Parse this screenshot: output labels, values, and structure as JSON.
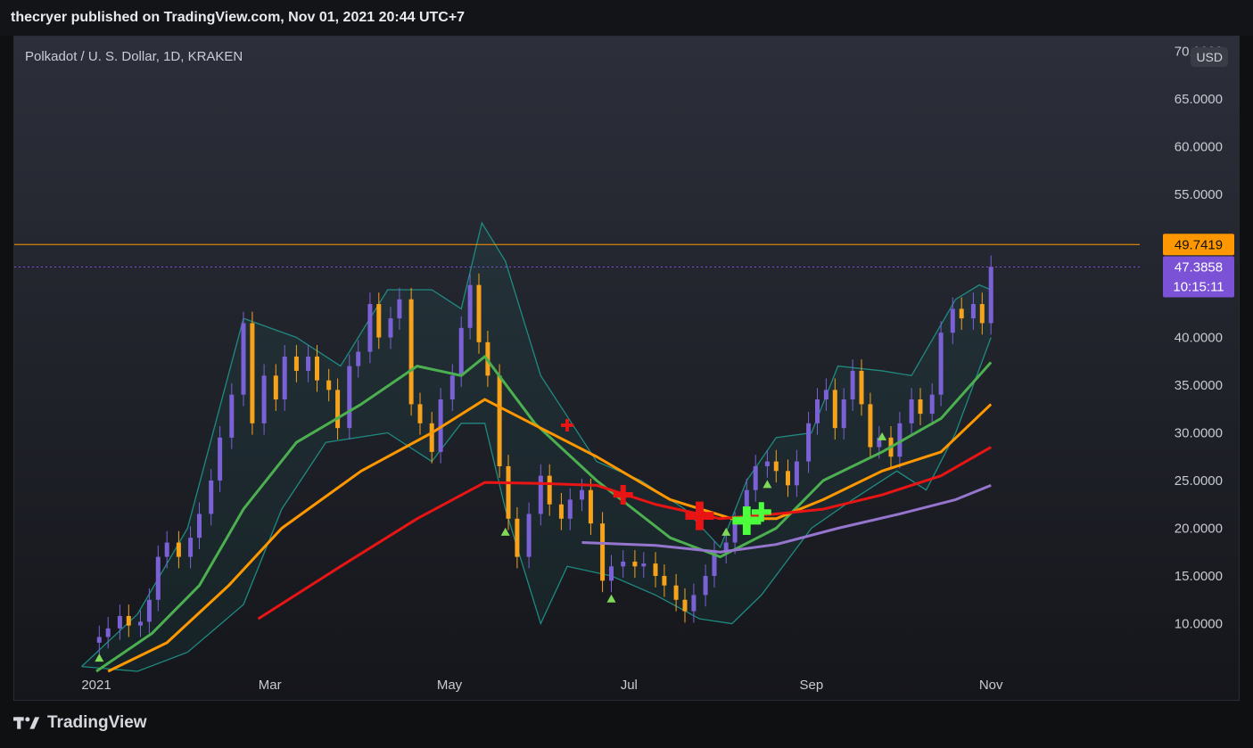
{
  "header": {
    "published": "thecryer published on TradingView.com, Nov 01, 2021 20:44 UTC+7"
  },
  "chart_header": {
    "symbol": "Polkadot / U. S. Dollar, 1D, KRAKEN",
    "currency": "USD"
  },
  "footer": {
    "brand": "TradingView"
  },
  "colors": {
    "up": "#7b61d6",
    "down": "#f7a21b",
    "sma_green": "#4caf50",
    "ema_orange": "#ff9800",
    "red": "#e91414",
    "purple": "#9575cd",
    "band": "#1f8a80"
  },
  "chart_data": {
    "type": "line",
    "title": "Polkadot / U. S. Dollar, 1D, KRAKEN",
    "xlabel": "",
    "ylabel": "",
    "ylim": [
      5,
      72
    ],
    "x_tick_labels": [
      "2021",
      "Mar",
      "May",
      "Jul",
      "Sep",
      "Nov"
    ],
    "y_tick_labels": [
      "70.0000",
      "65.0000",
      "60.0000",
      "55.0000",
      "40.0000",
      "35.0000",
      "30.0000",
      "25.0000",
      "20.0000",
      "15.0000",
      "10.0000"
    ],
    "price_labels": [
      {
        "value": 49.7419,
        "label": "49.7419",
        "color": "#ff9800"
      },
      {
        "value": 47.3858,
        "label": "47.3858",
        "sub": "10:15:11",
        "color": "#7b52d6"
      }
    ],
    "resistance": 49.74,
    "close_series": [
      [
        "Dec 27",
        8
      ],
      [
        "Jan 02",
        8.6
      ],
      [
        "Jan 05",
        9.5
      ],
      [
        "Jan 09",
        10.8
      ],
      [
        "Jan 12",
        9.8
      ],
      [
        "Jan 16",
        10.2
      ],
      [
        "Jan 19",
        12.5
      ],
      [
        "Jan 22",
        17.0
      ],
      [
        "Jan 25",
        18.5
      ],
      [
        "Jan 29",
        17.0
      ],
      [
        "Feb 02",
        19.0
      ],
      [
        "Feb 05",
        21.5
      ],
      [
        "Feb 09",
        25.0
      ],
      [
        "Feb 12",
        29.5
      ],
      [
        "Feb 16",
        34.0
      ],
      [
        "Feb 20",
        41.5
      ],
      [
        "Feb 23",
        31.0
      ],
      [
        "Feb 27",
        36.0
      ],
      [
        "Mar 03",
        33.5
      ],
      [
        "Mar 06",
        38.0
      ],
      [
        "Mar 10",
        36.5
      ],
      [
        "Mar 14",
        38.0
      ],
      [
        "Mar 17",
        35.5
      ],
      [
        "Mar 21",
        34.5
      ],
      [
        "Mar 24",
        30.5
      ],
      [
        "Mar 28",
        37.0
      ],
      [
        "Mar 31",
        38.5
      ],
      [
        "Apr 04",
        43.5
      ],
      [
        "Apr 07",
        40.0
      ],
      [
        "Apr 11",
        42.0
      ],
      [
        "Apr 14",
        44.0
      ],
      [
        "Apr 18",
        33.0
      ],
      [
        "Apr 21",
        31.0
      ],
      [
        "Apr 25",
        28.0
      ],
      [
        "Apr 28",
        33.5
      ],
      [
        "May 02",
        36.0
      ],
      [
        "May 05",
        41.0
      ],
      [
        "May 08",
        45.5
      ],
      [
        "May 11",
        39.5
      ],
      [
        "May 14",
        36.0
      ],
      [
        "May 18",
        26.5
      ],
      [
        "May 21",
        21.0
      ],
      [
        "May 24",
        17.0
      ],
      [
        "May 28",
        21.5
      ],
      [
        "Jun 01",
        25.5
      ],
      [
        "Jun 04",
        22.5
      ],
      [
        "Jun 08",
        21.0
      ],
      [
        "Jun 11",
        23.0
      ],
      [
        "Jun 15",
        24.0
      ],
      [
        "Jun 18",
        20.5
      ],
      [
        "Jun 22",
        14.5
      ],
      [
        "Jun 25",
        16.0
      ],
      [
        "Jun 29",
        16.5
      ],
      [
        "Jul 03",
        16.0
      ],
      [
        "Jul 06",
        16.3
      ],
      [
        "Jul 10",
        15.0
      ],
      [
        "Jul 13",
        14.0
      ],
      [
        "Jul 17",
        12.5
      ],
      [
        "Jul 20",
        11.3
      ],
      [
        "Jul 23",
        13.0
      ],
      [
        "Jul 27",
        15.0
      ],
      [
        "Jul 30",
        17.5
      ],
      [
        "Aug 03",
        18.5
      ],
      [
        "Aug 06",
        20.5
      ],
      [
        "Aug 10",
        24.0
      ],
      [
        "Aug 13",
        26.5
      ],
      [
        "Aug 17",
        27.0
      ],
      [
        "Aug 20",
        26.0
      ],
      [
        "Aug 24",
        24.5
      ],
      [
        "Aug 27",
        27.0
      ],
      [
        "Aug 31",
        31.0
      ],
      [
        "Sep 03",
        33.5
      ],
      [
        "Sep 06",
        34.5
      ],
      [
        "Sep 09",
        30.5
      ],
      [
        "Sep 12",
        33.5
      ],
      [
        "Sep 15",
        36.5
      ],
      [
        "Sep 18",
        33.0
      ],
      [
        "Sep 21",
        28.5
      ],
      [
        "Sep 24",
        29.5
      ],
      [
        "Sep 28",
        27.5
      ],
      [
        "Oct 01",
        31.0
      ],
      [
        "Oct 05",
        33.5
      ],
      [
        "Oct 08",
        32.0
      ],
      [
        "Oct 12",
        34.0
      ],
      [
        "Oct 15",
        40.5
      ],
      [
        "Oct 19",
        43.0
      ],
      [
        "Oct 22",
        42.0
      ],
      [
        "Oct 26",
        43.5
      ],
      [
        "Oct 29",
        41.5
      ],
      [
        "Nov 01",
        47.4
      ]
    ],
    "series": [
      {
        "name": "",
        "color": "#4caf50",
        "points": [
          [
            "Jan 01",
            5
          ],
          [
            "Jan 20",
            9
          ],
          [
            "Feb 05",
            14
          ],
          [
            "Feb 20",
            22
          ],
          [
            "Mar 10",
            29
          ],
          [
            "Apr 01",
            33
          ],
          [
            "Apr 20",
            37
          ],
          [
            "May 05",
            36
          ],
          [
            "May 13",
            38
          ],
          [
            "May 30",
            31
          ],
          [
            "Jun 20",
            25
          ],
          [
            "Jul 15",
            19
          ],
          [
            "Aug 01",
            17
          ],
          [
            "Aug 20",
            20
          ],
          [
            "Sep 05",
            25
          ],
          [
            "Sep 25",
            28
          ],
          [
            "Oct 15",
            31.5
          ],
          [
            "Nov 01",
            37.4
          ]
        ]
      },
      {
        "name": "",
        "color": "#ff9800",
        "points": [
          [
            "Jan 05",
            5
          ],
          [
            "Jan 25",
            8
          ],
          [
            "Feb 15",
            14
          ],
          [
            "Mar 05",
            20
          ],
          [
            "Apr 01",
            26
          ],
          [
            "Apr 25",
            30
          ],
          [
            "May 13",
            33.5
          ],
          [
            "Jun 01",
            30.5
          ],
          [
            "Jun 20",
            27.5
          ],
          [
            "Jul 15",
            23
          ],
          [
            "Aug 05",
            21
          ],
          [
            "Aug 20",
            21
          ],
          [
            "Sep 05",
            23
          ],
          [
            "Sep 25",
            26
          ],
          [
            "Oct 15",
            28
          ],
          [
            "Nov 01",
            33
          ]
        ]
      },
      {
        "name": "",
        "color": "#e91414",
        "points": [
          [
            "Feb 25",
            10.5
          ],
          [
            "Mar 25",
            16
          ],
          [
            "Apr 20",
            21
          ],
          [
            "May 13",
            24.8
          ],
          [
            "Jun 01",
            24.7
          ],
          [
            "Jun 20",
            24.5
          ],
          [
            "Jul 10",
            22.5
          ],
          [
            "Aug 01",
            21
          ],
          [
            "Aug 20",
            21.5
          ],
          [
            "Sep 05",
            22
          ],
          [
            "Sep 25",
            23.5
          ],
          [
            "Oct 15",
            25.5
          ],
          [
            "Nov 01",
            28.5
          ]
        ]
      },
      {
        "name": "",
        "color": "#9575cd",
        "points": [
          [
            "Jun 15",
            18.5
          ],
          [
            "Jul 10",
            18.2
          ],
          [
            "Aug 01",
            17.5
          ],
          [
            "Aug 20",
            18.3
          ],
          [
            "Sep 10",
            20
          ],
          [
            "Oct 01",
            21.5
          ],
          [
            "Oct 20",
            23
          ],
          [
            "Nov 01",
            24.5
          ]
        ]
      }
    ],
    "bollinger_upper": [
      [
        "Dec 27",
        5.5
      ],
      [
        "Jan 15",
        11
      ],
      [
        "Feb 01",
        20
      ],
      [
        "Feb 20",
        42
      ],
      [
        "Mar 10",
        40
      ],
      [
        "Mar 25",
        37
      ],
      [
        "Apr 10",
        45
      ],
      [
        "Apr 25",
        45
      ],
      [
        "May 05",
        43
      ],
      [
        "May 12",
        52
      ],
      [
        "May 20",
        48
      ],
      [
        "Jun 01",
        36
      ],
      [
        "Jun 20",
        27
      ],
      [
        "Jul 05",
        25
      ],
      [
        "Jul 20",
        22
      ],
      [
        "Aug 01",
        18
      ],
      [
        "Aug 10",
        25
      ],
      [
        "Aug 20",
        29.5
      ],
      [
        "Sep 01",
        30
      ],
      [
        "Sep 10",
        37
      ],
      [
        "Sep 25",
        36.5
      ],
      [
        "Oct 05",
        36
      ],
      [
        "Oct 20",
        44
      ],
      [
        "Oct 28",
        45.5
      ],
      [
        "Nov 01",
        45
      ]
    ],
    "bollinger_lower": [
      [
        "Dec 27",
        5.5
      ],
      [
        "Jan 15",
        5
      ],
      [
        "Feb 01",
        7
      ],
      [
        "Feb 20",
        12
      ],
      [
        "Mar 05",
        22
      ],
      [
        "Mar 20",
        29
      ],
      [
        "Apr 10",
        30
      ],
      [
        "Apr 25",
        27
      ],
      [
        "May 05",
        31
      ],
      [
        "May 13",
        31
      ],
      [
        "May 20",
        22
      ],
      [
        "Jun 01",
        10
      ],
      [
        "Jun 10",
        16
      ],
      [
        "Jun 25",
        15
      ],
      [
        "Jul 10",
        13
      ],
      [
        "Jul 25",
        10.5
      ],
      [
        "Aug 05",
        10
      ],
      [
        "Aug 15",
        13
      ],
      [
        "Sep 01",
        20
      ],
      [
        "Sep 15",
        23
      ],
      [
        "Sep 30",
        26
      ],
      [
        "Oct 10",
        24
      ],
      [
        "Oct 20",
        30
      ],
      [
        "Nov 01",
        40
      ]
    ],
    "cross_markers": [
      {
        "date": "Jun 10",
        "value": 30.8,
        "color": "#e91414",
        "size": "small"
      },
      {
        "date": "Jun 29",
        "value": 23.5,
        "color": "#e91414",
        "size": "medium"
      },
      {
        "date": "Jul 25",
        "value": 21.3,
        "color": "#e91414",
        "size": "large"
      },
      {
        "date": "Aug 10",
        "value": 20.8,
        "color": "#4cff3c",
        "size": "large"
      },
      {
        "date": "Aug 15",
        "value": 21.7,
        "color": "#4cff3c",
        "size": "medium"
      }
    ],
    "triangle_markers": [
      {
        "date": "Jan 02",
        "value": 6.3
      },
      {
        "date": "May 20",
        "value": 19.5
      },
      {
        "date": "Jun 25",
        "value": 12.5
      },
      {
        "date": "Aug 03",
        "value": 19.5
      },
      {
        "date": "Aug 17",
        "value": 24.5
      },
      {
        "date": "Sep 25",
        "value": 29.5
      }
    ]
  }
}
